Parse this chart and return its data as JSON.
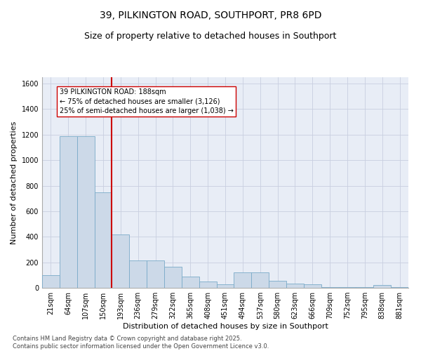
{
  "title": "39, PILKINGTON ROAD, SOUTHPORT, PR8 6PD",
  "subtitle": "Size of property relative to detached houses in Southport",
  "xlabel": "Distribution of detached houses by size in Southport",
  "ylabel": "Number of detached properties",
  "categories": [
    "21sqm",
    "64sqm",
    "107sqm",
    "150sqm",
    "193sqm",
    "236sqm",
    "279sqm",
    "322sqm",
    "365sqm",
    "408sqm",
    "451sqm",
    "494sqm",
    "537sqm",
    "580sqm",
    "623sqm",
    "666sqm",
    "709sqm",
    "752sqm",
    "795sqm",
    "838sqm",
    "881sqm"
  ],
  "values": [
    100,
    1190,
    1190,
    750,
    420,
    215,
    215,
    165,
    90,
    50,
    30,
    120,
    120,
    55,
    35,
    25,
    5,
    5,
    5,
    20,
    5
  ],
  "bar_color": "#ccd9e8",
  "bar_edge_color": "#7aaac8",
  "bar_linewidth": 0.6,
  "property_line_x": 3.5,
  "property_line_label": "39 PILKINGTON ROAD: 188sqm",
  "annotation_line1": "← 75% of detached houses are smaller (3,126)",
  "annotation_line2": "25% of semi-detached houses are larger (1,038) →",
  "property_line_color": "#cc0000",
  "ylim": [
    0,
    1650
  ],
  "yticks": [
    0,
    200,
    400,
    600,
    800,
    1000,
    1200,
    1400,
    1600
  ],
  "grid_color": "#c8cfe0",
  "bg_color": "#e8edf6",
  "footer_line1": "Contains HM Land Registry data © Crown copyright and database right 2025.",
  "footer_line2": "Contains public sector information licensed under the Open Government Licence v3.0.",
  "title_fontsize": 10,
  "subtitle_fontsize": 9,
  "axis_label_fontsize": 8,
  "tick_fontsize": 7,
  "footer_fontsize": 6
}
